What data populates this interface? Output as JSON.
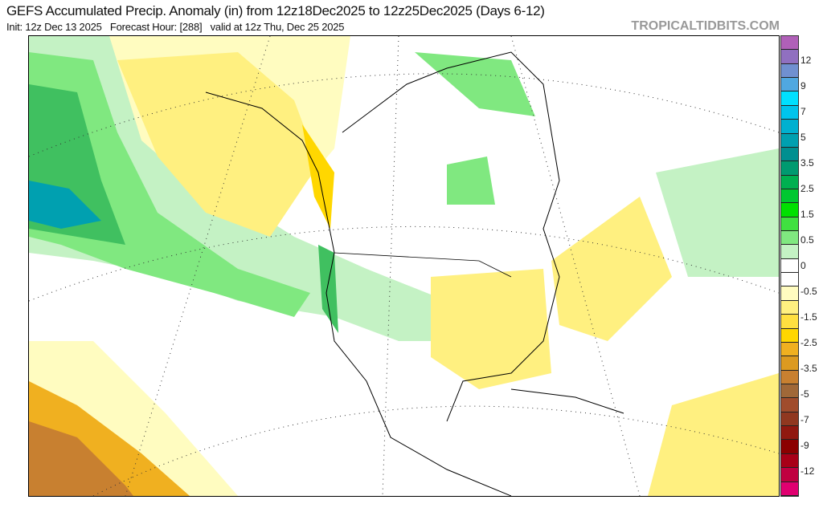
{
  "header": {
    "title": "GEFS Accumulated Precip. Anomaly (in) from 12z18Dec2025 to 12z25Dec2025 (Days 6-12)",
    "subtitle": "Init: 12z Dec 13 2025   Forecast Hour: [288]   valid at 12z Thu, Dec 25 2025",
    "brand": "TROPICALTIDBITS.COM"
  },
  "colorbar": {
    "colors": [
      "#b060b8",
      "#9070c0",
      "#7090d0",
      "#50a8e0",
      "#00e0ff",
      "#00c4ec",
      "#00b0d0",
      "#00a0b0",
      "#008f90",
      "#009a70",
      "#00b050",
      "#00c830",
      "#00e000",
      "#40e040",
      "#80e880",
      "#c4f2c4",
      "#ffffff",
      "#ffffff",
      "#fffcc0",
      "#fff080",
      "#ffe040",
      "#ffd700",
      "#f0b020",
      "#dc9a20",
      "#c88030",
      "#a06838",
      "#a04c2c",
      "#903820",
      "#901810",
      "#8b0000",
      "#a80018",
      "#c00040",
      "#e00070"
    ],
    "labels": [
      "12",
      "9",
      "7",
      "5",
      "3.5",
      "2.5",
      "1.5",
      "0.5",
      "0",
      "-0.5",
      "-1.5",
      "-2.5",
      "-3.5",
      "-5",
      "-7",
      "-9",
      "-12"
    ]
  }
}
